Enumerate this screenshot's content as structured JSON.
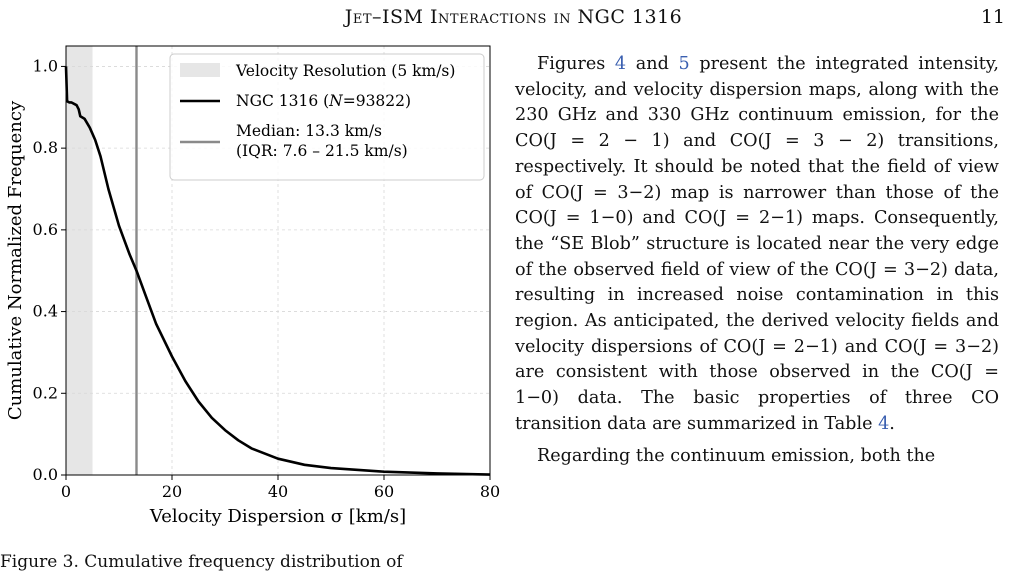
{
  "header": {
    "title": "Jet–ISM Interactions in NGC 1316",
    "page_number": "11"
  },
  "chart_data": {
    "type": "line",
    "xlabel": "Velocity Dispersion σ [km/s]",
    "ylabel": "Cumulative Normalized Frequency",
    "xlim": [
      0,
      80
    ],
    "ylim": [
      0,
      1.05
    ],
    "xticks": [
      0,
      20,
      40,
      60,
      80
    ],
    "yticks": [
      0.0,
      0.2,
      0.4,
      0.6,
      0.8,
      1.0
    ],
    "xtick_labels": [
      "0",
      "20",
      "40",
      "60",
      "80"
    ],
    "ytick_labels": [
      "0.0",
      "0.2",
      "0.4",
      "0.6",
      "0.8",
      "1.0"
    ],
    "grid": true,
    "legend_position": "top-right",
    "shaded_region": {
      "label": "Velocity Resolution (5 km/s)",
      "x_range": [
        0,
        5
      ],
      "color": "#e6e6e6"
    },
    "series": [
      {
        "name": "NGC 1316 (N=93822)",
        "label_prefix": "NGC 1316 (",
        "label_var": "N",
        "label_suffix": "=93822)",
        "color": "#000000",
        "x": [
          0,
          0.2,
          0.6,
          1.0,
          2.0,
          2.4,
          2.7,
          3.5,
          4.5,
          5.5,
          6.5,
          8,
          10,
          12,
          13.3,
          15,
          17,
          20,
          22.5,
          25,
          27.5,
          30,
          32.5,
          35,
          40,
          45,
          50,
          60,
          70,
          80
        ],
        "y": [
          1.0,
          0.915,
          0.912,
          0.912,
          0.905,
          0.895,
          0.878,
          0.872,
          0.85,
          0.82,
          0.78,
          0.7,
          0.61,
          0.54,
          0.5,
          0.44,
          0.37,
          0.29,
          0.23,
          0.18,
          0.14,
          0.11,
          0.085,
          0.065,
          0.04,
          0.025,
          0.017,
          0.008,
          0.004,
          0.001
        ]
      }
    ],
    "median_line": {
      "x": 13.3,
      "color": "#8a8a8a",
      "label_line1": "Median: 13.3 km/s",
      "label_line2": "(IQR: 7.6 – 21.5 km/s)"
    }
  },
  "body": {
    "p1": "Figures 4 and 5 present the integrated intensity, velocity, and velocity dispersion maps, along with the 230 GHz and 330 GHz continuum emission, for the CO(J = 2 − 1) and CO(J = 3 − 2) transitions, respectively. It should be noted that the field of view of CO(J = 3−2) map is narrower than those of the CO(J = 1−0) and CO(J = 2−1) maps. Consequently, the “SE Blob” structure is located near the very edge of the observed field of view of the CO(J = 3−2) data, resulting in increased noise contamination in this region. As anticipated, the derived velocity fields and velocity dispersions of CO(J = 2−1) and CO(J = 3−2) are consistent with those observed in the CO(J = 1−0) data. The basic properties of three CO transition data are summarized in Table 4.",
    "p2": "Regarding the continuum emission, both the"
  },
  "caption": {
    "partial": "Figure 3. Cumulative frequency distribution of"
  }
}
